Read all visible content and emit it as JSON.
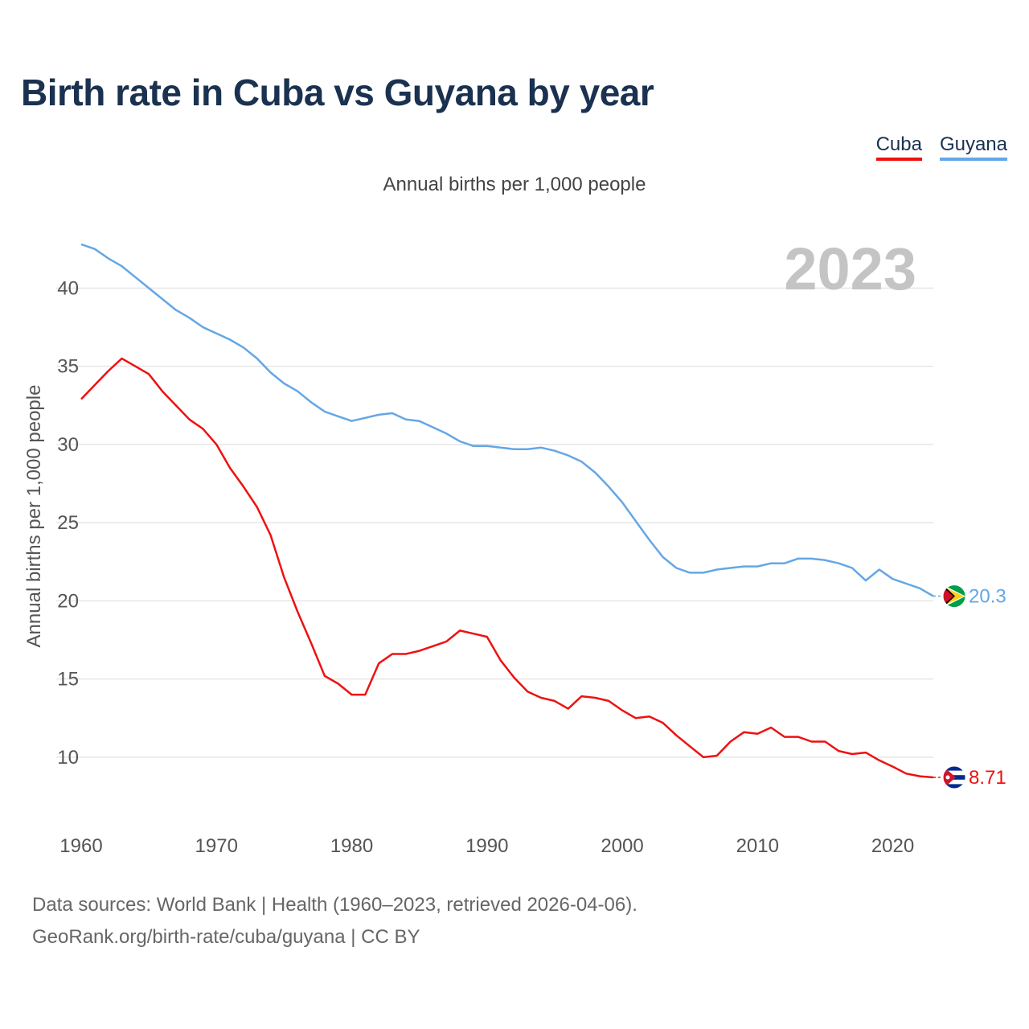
{
  "chart_data": {
    "type": "line",
    "title": "Birth rate in Cuba vs Guyana by year",
    "subtitle": "Annual births per 1,000 people",
    "ylabel": "Annual births per 1,000 people",
    "xlabel": "",
    "xlim": [
      1960,
      2023
    ],
    "ylim": [
      6.5,
      43
    ],
    "yticks": [
      10,
      15,
      20,
      25,
      30,
      35,
      40
    ],
    "xticks": [
      1960,
      1970,
      1980,
      1990,
      2000,
      2010,
      2020
    ],
    "year_watermark": "2023",
    "legend_position": "top-right",
    "series": [
      {
        "name": "Cuba",
        "color": "#ee1111",
        "end_label": "8.71",
        "flag": "cuba-flag-icon",
        "values": [
          [
            1960,
            32.9
          ],
          [
            1961,
            33.8
          ],
          [
            1962,
            34.7
          ],
          [
            1963,
            35.5
          ],
          [
            1964,
            35.0
          ],
          [
            1965,
            34.5
          ],
          [
            1966,
            33.4
          ],
          [
            1967,
            32.5
          ],
          [
            1968,
            31.6
          ],
          [
            1969,
            31.0
          ],
          [
            1970,
            30.0
          ],
          [
            1971,
            28.5
          ],
          [
            1972,
            27.3
          ],
          [
            1973,
            26.0
          ],
          [
            1974,
            24.2
          ],
          [
            1975,
            21.5
          ],
          [
            1976,
            19.3
          ],
          [
            1977,
            17.3
          ],
          [
            1978,
            15.2
          ],
          [
            1979,
            14.7
          ],
          [
            1980,
            14.0
          ],
          [
            1981,
            14.0
          ],
          [
            1982,
            16.0
          ],
          [
            1983,
            16.6
          ],
          [
            1984,
            16.6
          ],
          [
            1985,
            16.8
          ],
          [
            1986,
            17.1
          ],
          [
            1987,
            17.4
          ],
          [
            1988,
            18.1
          ],
          [
            1989,
            17.9
          ],
          [
            1990,
            17.7
          ],
          [
            1991,
            16.2
          ],
          [
            1992,
            15.1
          ],
          [
            1993,
            14.2
          ],
          [
            1994,
            13.8
          ],
          [
            1995,
            13.6
          ],
          [
            1996,
            13.1
          ],
          [
            1997,
            13.9
          ],
          [
            1998,
            13.8
          ],
          [
            1999,
            13.6
          ],
          [
            2000,
            13.0
          ],
          [
            2001,
            12.5
          ],
          [
            2002,
            12.6
          ],
          [
            2003,
            12.2
          ],
          [
            2004,
            11.4
          ],
          [
            2005,
            10.7
          ],
          [
            2006,
            10.0
          ],
          [
            2007,
            10.1
          ],
          [
            2008,
            11.0
          ],
          [
            2009,
            11.6
          ],
          [
            2010,
            11.5
          ],
          [
            2011,
            11.9
          ],
          [
            2012,
            11.3
          ],
          [
            2013,
            11.3
          ],
          [
            2014,
            11.0
          ],
          [
            2015,
            11.0
          ],
          [
            2016,
            10.4
          ],
          [
            2017,
            10.2
          ],
          [
            2018,
            10.3
          ],
          [
            2019,
            9.8
          ],
          [
            2020,
            9.4
          ],
          [
            2021,
            8.95
          ],
          [
            2022,
            8.78
          ],
          [
            2023,
            8.71
          ]
        ]
      },
      {
        "name": "Guyana",
        "color": "#63a7e6",
        "end_label": "20.3",
        "flag": "guyana-flag-icon",
        "values": [
          [
            1960,
            42.8
          ],
          [
            1961,
            42.5
          ],
          [
            1962,
            41.9
          ],
          [
            1963,
            41.4
          ],
          [
            1964,
            40.7
          ],
          [
            1965,
            40.0
          ],
          [
            1966,
            39.3
          ],
          [
            1967,
            38.6
          ],
          [
            1968,
            38.1
          ],
          [
            1969,
            37.5
          ],
          [
            1970,
            37.1
          ],
          [
            1971,
            36.7
          ],
          [
            1972,
            36.2
          ],
          [
            1973,
            35.5
          ],
          [
            1974,
            34.6
          ],
          [
            1975,
            33.9
          ],
          [
            1976,
            33.4
          ],
          [
            1977,
            32.7
          ],
          [
            1978,
            32.1
          ],
          [
            1979,
            31.8
          ],
          [
            1980,
            31.5
          ],
          [
            1981,
            31.7
          ],
          [
            1982,
            31.9
          ],
          [
            1983,
            32.0
          ],
          [
            1984,
            31.6
          ],
          [
            1985,
            31.5
          ],
          [
            1986,
            31.1
          ],
          [
            1987,
            30.7
          ],
          [
            1988,
            30.2
          ],
          [
            1989,
            29.9
          ],
          [
            1990,
            29.9
          ],
          [
            1991,
            29.8
          ],
          [
            1992,
            29.7
          ],
          [
            1993,
            29.7
          ],
          [
            1994,
            29.8
          ],
          [
            1995,
            29.6
          ],
          [
            1996,
            29.3
          ],
          [
            1997,
            28.9
          ],
          [
            1998,
            28.2
          ],
          [
            1999,
            27.3
          ],
          [
            2000,
            26.3
          ],
          [
            2001,
            25.1
          ],
          [
            2002,
            23.9
          ],
          [
            2003,
            22.8
          ],
          [
            2004,
            22.1
          ],
          [
            2005,
            21.8
          ],
          [
            2006,
            21.8
          ],
          [
            2007,
            22.0
          ],
          [
            2008,
            22.1
          ],
          [
            2009,
            22.2
          ],
          [
            2010,
            22.2
          ],
          [
            2011,
            22.4
          ],
          [
            2012,
            22.4
          ],
          [
            2013,
            22.7
          ],
          [
            2014,
            22.7
          ],
          [
            2015,
            22.6
          ],
          [
            2016,
            22.4
          ],
          [
            2017,
            22.1
          ],
          [
            2018,
            21.3
          ],
          [
            2019,
            22.0
          ],
          [
            2020,
            21.4
          ],
          [
            2021,
            21.1
          ],
          [
            2022,
            20.8
          ],
          [
            2023,
            20.3
          ]
        ]
      }
    ]
  },
  "footer": {
    "line1": "Data sources: World Bank | Health (1960–2023, retrieved 2026-04-06).",
    "line2": "GeoRank.org/birth-rate/cuba/guyana | CC BY"
  }
}
